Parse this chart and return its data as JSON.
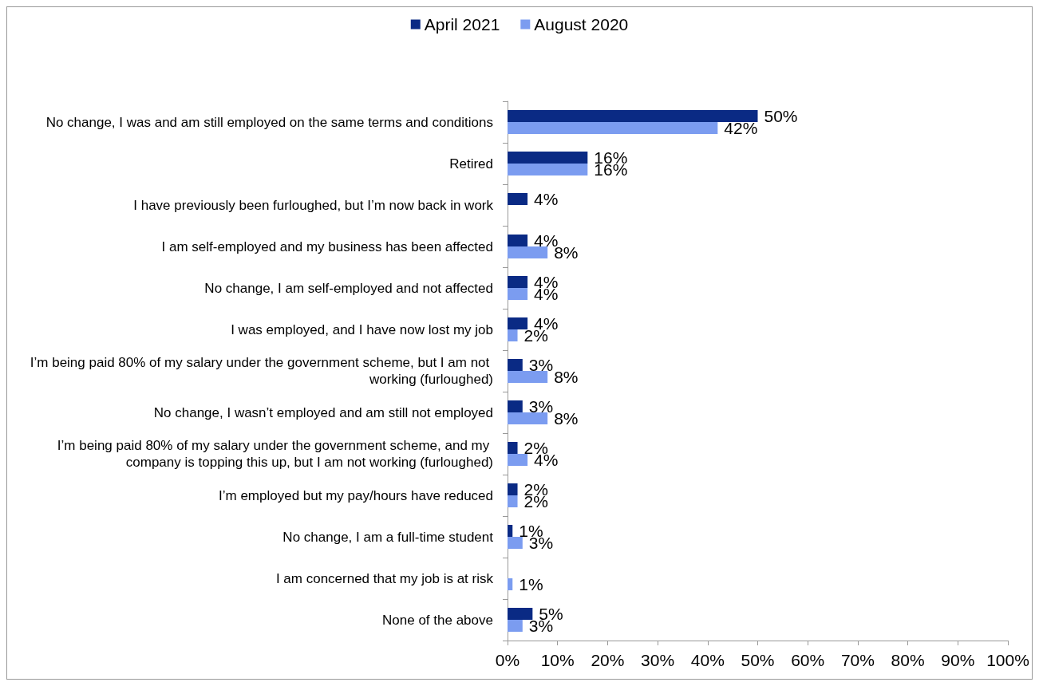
{
  "chart_data": {
    "type": "bar",
    "orientation": "horizontal",
    "categories": [
      "No change, I was and am still employed on the same terms and conditions",
      "Retired",
      "I have previously been furloughed, but I’m now back in work",
      "I am self-employed and my business has been affected",
      "No change, I am self-employed and not affected",
      "I was employed, and I have now lost my job",
      "I’m being paid 80% of my salary under the government scheme, but I am not working (furloughed)",
      "No change, I wasn’t employed and am still not employed",
      "I’m being paid 80% of my salary under the government scheme, and my company is topping this up, but I am not working (furloughed)",
      "I’m employed but my pay/hours have reduced",
      "No change, I am a full-time student",
      "I am concerned that my job is at risk",
      "None of the above"
    ],
    "series": [
      {
        "name": "April 2021",
        "color": "#0a2a84",
        "values": [
          50,
          16,
          4,
          4,
          4,
          4,
          3,
          3,
          2,
          2,
          1,
          null,
          5
        ],
        "value_labels": [
          "50%",
          "16%",
          "4%",
          "4%",
          "4%",
          "4%",
          "3%",
          "3%",
          "2%",
          "2%",
          "1%",
          null,
          "5%"
        ]
      },
      {
        "name": "August 2020",
        "color": "#7b9cf0",
        "values": [
          42,
          16,
          null,
          8,
          4,
          2,
          8,
          8,
          4,
          2,
          3,
          1,
          3
        ],
        "value_labels": [
          "42%",
          "16%",
          null,
          "8%",
          "4%",
          "2%",
          "8%",
          "8%",
          "4%",
          "2%",
          "3%",
          "1%",
          "3%"
        ]
      }
    ],
    "xlim": [
      0,
      100
    ],
    "xticks": [
      {
        "value": 0,
        "label": "0%"
      },
      {
        "value": 10,
        "label": "10%"
      },
      {
        "value": 20,
        "label": "20%"
      },
      {
        "value": 30,
        "label": "30%"
      },
      {
        "value": 40,
        "label": "40%"
      },
      {
        "value": 50,
        "label": "50%"
      },
      {
        "value": 60,
        "label": "60%"
      },
      {
        "value": 70,
        "label": "70%"
      },
      {
        "value": 80,
        "label": "80%"
      },
      {
        "value": 90,
        "label": "90%"
      },
      {
        "value": 100,
        "label": "100%"
      }
    ],
    "grid": false,
    "legend": "top"
  }
}
